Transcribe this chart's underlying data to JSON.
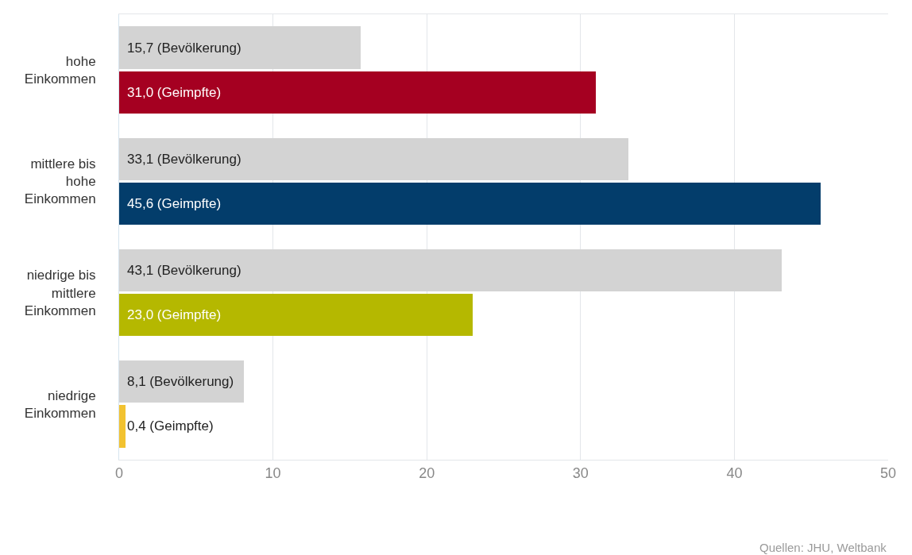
{
  "chart_data": {
    "type": "bar",
    "orientation": "horizontal",
    "categories": [
      "hohe\nEinkommen",
      "mittlere bis\nhohe\nEinkommen",
      "niedrige bis\nmittlere\nEinkommen",
      "niedrige\nEinkommen"
    ],
    "series": [
      {
        "colors": [
          "#d3d3d3",
          "#d3d3d3",
          "#d3d3d3",
          "#d3d3d3"
        ],
        "values": [
          15.7,
          33.1,
          43.1,
          8.1
        ],
        "value_labels": [
          "15,7 (Bevölkerung)",
          "33,1 (Bevölkerung)",
          "43,1 (Bevölkerung)",
          "8,1 (Bevölkerung)"
        ]
      },
      {
        "colors": [
          "#a50021",
          "#033d6b",
          "#b5b800",
          "#f2c230"
        ],
        "values": [
          31.0,
          45.6,
          23.0,
          0.4
        ],
        "value_labels": [
          "31,0 (Geimpfte)",
          "45,6 (Geimpfte)",
          "23,0 (Geimpfte)",
          "0,4 (Geimpfte)"
        ]
      }
    ],
    "xlim": [
      0,
      50
    ],
    "xticks": [
      0,
      10,
      20,
      30,
      40,
      50
    ],
    "grid": "x",
    "annotations": [
      "Quellen: JHU, Weltbank"
    ]
  }
}
